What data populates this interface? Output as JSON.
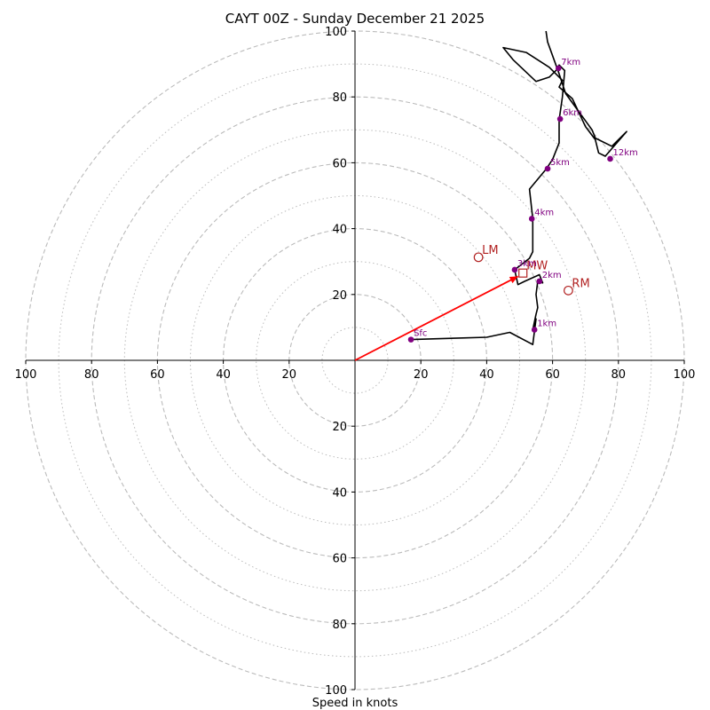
{
  "chart_data": {
    "type": "hodograph",
    "title": "CAYT 00Z - Sunday December 21 2025",
    "xlabel": "Speed in knots",
    "range": 100,
    "x_ticks": [
      {
        "value": -100,
        "label": "100"
      },
      {
        "value": -80,
        "label": "80"
      },
      {
        "value": -60,
        "label": "60"
      },
      {
        "value": -40,
        "label": "40"
      },
      {
        "value": -20,
        "label": "20"
      },
      {
        "value": 20,
        "label": "20"
      },
      {
        "value": 40,
        "label": "40"
      },
      {
        "value": 60,
        "label": "60"
      },
      {
        "value": 80,
        "label": "80"
      },
      {
        "value": 100,
        "label": "100"
      }
    ],
    "y_ticks": [
      {
        "value": 100,
        "label": "100"
      },
      {
        "value": 80,
        "label": "80"
      },
      {
        "value": 60,
        "label": "60"
      },
      {
        "value": 40,
        "label": "40"
      },
      {
        "value": 20,
        "label": "20"
      },
      {
        "value": -20,
        "label": "20"
      },
      {
        "value": -40,
        "label": "40"
      },
      {
        "value": -60,
        "label": "60"
      },
      {
        "value": -80,
        "label": "80"
      },
      {
        "value": -100,
        "label": "100"
      }
    ],
    "rings_dashed": [
      20,
      40,
      60,
      80,
      100
    ],
    "rings_dotted": [
      10,
      30,
      50,
      70,
      90
    ],
    "colors": {
      "trace": "#000000",
      "points": "#800080",
      "shear": "#ff0000",
      "motion": "#b22222",
      "ring": "#bbbbbb"
    },
    "trace": [
      [
        17,
        6.3
      ],
      [
        40,
        7
      ],
      [
        47,
        8.5
      ],
      [
        54,
        4.8
      ],
      [
        55,
        12.6
      ],
      [
        54,
        9.3
      ],
      [
        55,
        14
      ],
      [
        55.5,
        16
      ],
      [
        55,
        20
      ],
      [
        55.5,
        24
      ],
      [
        57,
        23.5
      ],
      [
        56,
        26
      ],
      [
        51.5,
        24
      ],
      [
        49.5,
        23
      ],
      [
        48.5,
        27.5
      ],
      [
        53,
        31
      ],
      [
        54,
        33
      ],
      [
        54,
        43
      ],
      [
        53,
        52
      ],
      [
        58,
        58
      ],
      [
        60,
        61
      ],
      [
        62,
        66
      ],
      [
        62,
        73
      ],
      [
        63,
        80
      ],
      [
        63.7,
        88
      ],
      [
        62,
        89.7
      ],
      [
        61.5,
        88.5
      ],
      [
        59,
        86
      ],
      [
        55,
        84.7
      ],
      [
        48,
        91.3
      ],
      [
        45,
        95
      ],
      [
        52,
        93.5
      ],
      [
        59,
        89
      ],
      [
        63,
        85
      ],
      [
        62,
        83
      ],
      [
        66,
        79.5
      ],
      [
        70,
        71
      ],
      [
        73,
        67
      ],
      [
        74,
        63
      ],
      [
        76,
        62
      ],
      [
        82.5,
        69.5
      ],
      [
        78,
        65
      ],
      [
        73,
        67.5
      ],
      [
        72,
        70
      ],
      [
        64,
        81
      ],
      [
        62,
        87
      ],
      [
        58.5,
        96.7
      ],
      [
        58,
        100
      ]
    ],
    "points": [
      {
        "label": "Sfc",
        "u": 17,
        "v": 6.3
      },
      {
        "label": "1km",
        "u": 54.5,
        "v": 9.3
      },
      {
        "label": "2km",
        "u": 56,
        "v": 24
      },
      {
        "label": "3km",
        "u": 48.5,
        "v": 27.5
      },
      {
        "label": "4km",
        "u": 53.7,
        "v": 43
      },
      {
        "label": "5km",
        "u": 58.5,
        "v": 58.2
      },
      {
        "label": "6km",
        "u": 62.3,
        "v": 73.3
      },
      {
        "label": "7km",
        "u": 61.8,
        "v": 88.7
      },
      {
        "label": "12km",
        "u": 77.5,
        "v": 61.2
      }
    ],
    "shear_vector": {
      "from": [
        0,
        0
      ],
      "to": [
        49.5,
        25.5
      ]
    },
    "storm_motion": [
      {
        "label": "LM",
        "u": 37.5,
        "v": 31.3,
        "marker": "circle"
      },
      {
        "label": "MW",
        "u": 51,
        "v": 26.5,
        "marker": "square"
      },
      {
        "label": "RM",
        "u": 64.8,
        "v": 21.2,
        "marker": "circle"
      }
    ]
  }
}
